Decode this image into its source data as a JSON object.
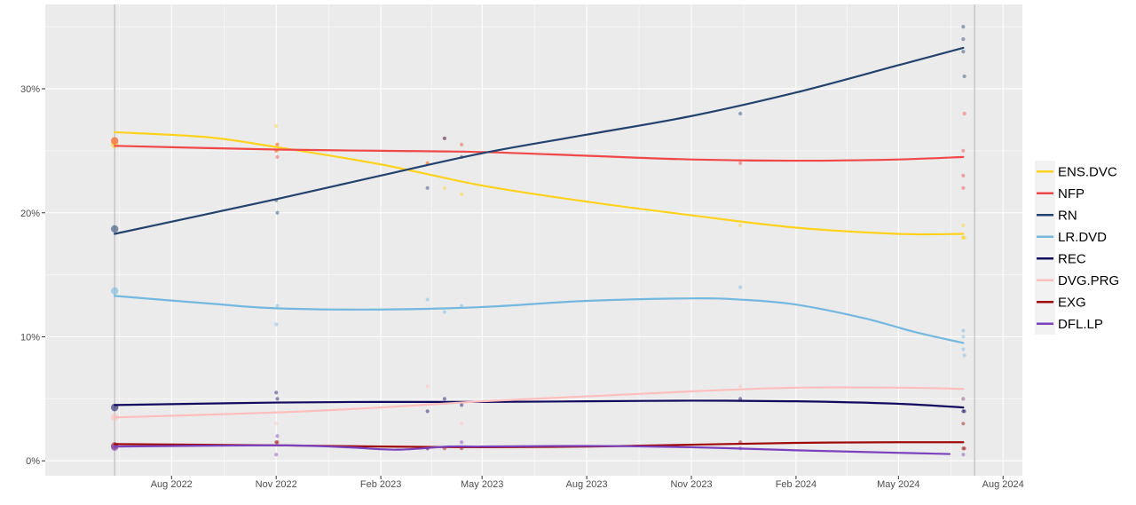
{
  "chart_data": {
    "type": "line",
    "title": "",
    "xlabel": "",
    "ylabel": "",
    "y_format": "percent",
    "xlim": [
      "2022-04-12",
      "2024-08-18"
    ],
    "ylim": [
      -0.012,
      0.368
    ],
    "x_ticks": [
      {
        "date": "2022-08-01",
        "label": "Aug 2022"
      },
      {
        "date": "2022-11-01",
        "label": "Nov 2022"
      },
      {
        "date": "2023-02-01",
        "label": "Feb 2023"
      },
      {
        "date": "2023-05-01",
        "label": "May 2023"
      },
      {
        "date": "2023-08-01",
        "label": "Aug 2023"
      },
      {
        "date": "2023-11-01",
        "label": "Nov 2023"
      },
      {
        "date": "2024-02-01",
        "label": "Feb 2024"
      },
      {
        "date": "2024-05-01",
        "label": "May 2024"
      },
      {
        "date": "2024-08-01",
        "label": "Aug 2024"
      }
    ],
    "y_ticks": [
      {
        "value": 0.0,
        "label": "0%"
      },
      {
        "value": 0.1,
        "label": "10%"
      },
      {
        "value": 0.2,
        "label": "20%"
      },
      {
        "value": 0.3,
        "label": "30%"
      }
    ],
    "vertical_lines": [
      "2022-06-12",
      "2024-07-07"
    ],
    "grid": true,
    "legend_position": "right",
    "series": [
      {
        "name": "ENS.DVC",
        "color": "#FFD21E",
        "points": [
          [
            "2022-06-12",
            0.258
          ],
          [
            "2022-06-12",
            0.255
          ],
          [
            "2022-11-01",
            0.27
          ],
          [
            "2022-11-02",
            0.255
          ],
          [
            "2022-11-02",
            0.25
          ],
          [
            "2023-03-14",
            0.24
          ],
          [
            "2023-03-29",
            0.22
          ],
          [
            "2023-04-13",
            0.215
          ],
          [
            "2023-12-14",
            0.19
          ],
          [
            "2024-06-27",
            0.18
          ],
          [
            "2024-06-27",
            0.19
          ],
          [
            "2024-06-27",
            0.18
          ],
          [
            "2024-06-28",
            0.18
          ]
        ],
        "trend": [
          [
            "2022-06-12",
            0.265
          ],
          [
            "2022-09-01",
            0.261
          ],
          [
            "2022-11-01",
            0.253
          ],
          [
            "2023-02-01",
            0.239
          ],
          [
            "2023-05-01",
            0.222
          ],
          [
            "2023-08-01",
            0.209
          ],
          [
            "2023-11-01",
            0.198
          ],
          [
            "2024-02-01",
            0.188
          ],
          [
            "2024-05-01",
            0.183
          ],
          [
            "2024-06-27",
            0.183
          ]
        ]
      },
      {
        "name": "NFP",
        "color": "#F04848",
        "points": [
          [
            "2022-06-12",
            0.258
          ],
          [
            "2022-11-01",
            0.25
          ],
          [
            "2022-11-02",
            0.245
          ],
          [
            "2022-11-02",
            0.255
          ],
          [
            "2023-03-14",
            0.24
          ],
          [
            "2023-03-29",
            0.26
          ],
          [
            "2023-04-13",
            0.255
          ],
          [
            "2023-12-14",
            0.24
          ],
          [
            "2024-06-27",
            0.23
          ],
          [
            "2024-06-27",
            0.22
          ],
          [
            "2024-06-27",
            0.25
          ],
          [
            "2024-06-28",
            0.28
          ]
        ],
        "trend": [
          [
            "2022-06-12",
            0.254
          ],
          [
            "2022-11-01",
            0.251
          ],
          [
            "2023-02-01",
            0.25
          ],
          [
            "2023-05-01",
            0.249
          ],
          [
            "2023-08-01",
            0.246
          ],
          [
            "2023-11-01",
            0.243
          ],
          [
            "2024-02-01",
            0.242
          ],
          [
            "2024-05-01",
            0.243
          ],
          [
            "2024-06-27",
            0.245
          ]
        ]
      },
      {
        "name": "RN",
        "color": "#23426E",
        "points": [
          [
            "2022-06-12",
            0.187
          ],
          [
            "2022-11-01",
            0.21
          ],
          [
            "2022-11-02",
            0.2
          ],
          [
            "2023-03-14",
            0.22
          ],
          [
            "2023-03-29",
            0.26
          ],
          [
            "2023-04-13",
            0.245
          ],
          [
            "2023-12-14",
            0.28
          ],
          [
            "2024-06-27",
            0.34
          ],
          [
            "2024-06-27",
            0.33
          ],
          [
            "2024-06-27",
            0.35
          ],
          [
            "2024-06-28",
            0.31
          ]
        ],
        "trend": [
          [
            "2022-06-12",
            0.183
          ],
          [
            "2022-11-01",
            0.211
          ],
          [
            "2023-02-01",
            0.23
          ],
          [
            "2023-05-01",
            0.248
          ],
          [
            "2023-08-01",
            0.263
          ],
          [
            "2023-11-01",
            0.278
          ],
          [
            "2024-02-01",
            0.297
          ],
          [
            "2024-05-01",
            0.319
          ],
          [
            "2024-06-27",
            0.333
          ]
        ]
      },
      {
        "name": "LR.DVD",
        "color": "#74B8E0",
        "points": [
          [
            "2022-06-12",
            0.137
          ],
          [
            "2022-11-01",
            0.11
          ],
          [
            "2022-11-02",
            0.125
          ],
          [
            "2023-03-14",
            0.13
          ],
          [
            "2023-03-29",
            0.12
          ],
          [
            "2023-04-13",
            0.125
          ],
          [
            "2023-12-14",
            0.14
          ],
          [
            "2024-06-27",
            0.1
          ],
          [
            "2024-06-27",
            0.09
          ],
          [
            "2024-06-27",
            0.105
          ],
          [
            "2024-06-28",
            0.085
          ]
        ],
        "trend": [
          [
            "2022-06-12",
            0.133
          ],
          [
            "2022-09-01",
            0.127
          ],
          [
            "2022-11-01",
            0.123
          ],
          [
            "2023-02-01",
            0.122
          ],
          [
            "2023-05-01",
            0.124
          ],
          [
            "2023-08-01",
            0.129
          ],
          [
            "2023-11-01",
            0.131
          ],
          [
            "2023-12-14",
            0.13
          ],
          [
            "2024-02-01",
            0.126
          ],
          [
            "2024-04-01",
            0.115
          ],
          [
            "2024-05-15",
            0.104
          ],
          [
            "2024-06-27",
            0.095
          ]
        ]
      },
      {
        "name": "REC",
        "color": "#110A5E",
        "points": [
          [
            "2022-06-12",
            0.043
          ],
          [
            "2022-11-01",
            0.055
          ],
          [
            "2022-11-02",
            0.05
          ],
          [
            "2023-03-14",
            0.04
          ],
          [
            "2023-03-29",
            0.05
          ],
          [
            "2023-04-13",
            0.045
          ],
          [
            "2023-12-14",
            0.05
          ],
          [
            "2024-06-27",
            0.04
          ],
          [
            "2024-06-27",
            0.05
          ],
          [
            "2024-06-28",
            0.04
          ]
        ],
        "trend": [
          [
            "2022-06-12",
            0.045
          ],
          [
            "2022-11-01",
            0.047
          ],
          [
            "2023-02-01",
            0.0475
          ],
          [
            "2023-05-01",
            0.0475
          ],
          [
            "2023-08-01",
            0.048
          ],
          [
            "2023-11-01",
            0.0485
          ],
          [
            "2024-02-01",
            0.048
          ],
          [
            "2024-05-01",
            0.046
          ],
          [
            "2024-06-27",
            0.043
          ]
        ]
      },
      {
        "name": "DVG.PRG",
        "color": "#FFBEBE",
        "points": [
          [
            "2022-06-12",
            0.035
          ],
          [
            "2022-11-01",
            0.03
          ],
          [
            "2023-03-14",
            0.06
          ],
          [
            "2023-04-13",
            0.03
          ],
          [
            "2023-12-14",
            0.06
          ],
          [
            "2024-06-27",
            0.05
          ]
        ],
        "trend": [
          [
            "2022-06-12",
            0.035
          ],
          [
            "2022-11-01",
            0.039
          ],
          [
            "2023-02-01",
            0.043
          ],
          [
            "2023-05-01",
            0.048
          ],
          [
            "2023-08-01",
            0.052
          ],
          [
            "2023-11-01",
            0.056
          ],
          [
            "2024-02-01",
            0.059
          ],
          [
            "2024-05-01",
            0.059
          ],
          [
            "2024-06-27",
            0.058
          ]
        ]
      },
      {
        "name": "EXG",
        "color": "#9E0A0A",
        "points": [
          [
            "2022-06-12",
            0.012
          ],
          [
            "2022-11-01",
            0.015
          ],
          [
            "2022-11-02",
            0.015
          ],
          [
            "2023-03-14",
            0.01
          ],
          [
            "2023-03-29",
            0.01
          ],
          [
            "2023-04-13",
            0.01
          ],
          [
            "2023-12-14",
            0.015
          ],
          [
            "2024-06-27",
            0.01
          ],
          [
            "2024-06-27",
            0.03
          ],
          [
            "2024-06-28",
            0.01
          ]
        ],
        "trend": [
          [
            "2022-06-12",
            0.0135
          ],
          [
            "2022-11-01",
            0.0125
          ],
          [
            "2023-02-01",
            0.0115
          ],
          [
            "2023-05-01",
            0.011
          ],
          [
            "2023-08-01",
            0.0115
          ],
          [
            "2023-11-01",
            0.013
          ],
          [
            "2024-02-01",
            0.0145
          ],
          [
            "2024-05-01",
            0.015
          ],
          [
            "2024-06-27",
            0.015
          ]
        ]
      },
      {
        "name": "DFL.LP",
        "color": "#7B42BE",
        "points": [
          [
            "2022-06-12",
            0.011
          ],
          [
            "2022-11-01",
            0.005
          ],
          [
            "2022-11-02",
            0.02
          ],
          [
            "2023-03-14",
            0.01
          ],
          [
            "2023-04-13",
            0.015
          ],
          [
            "2023-12-14",
            0.01
          ],
          [
            "2024-06-27",
            0.005
          ]
        ],
        "trend": [
          [
            "2022-06-12",
            0.0115
          ],
          [
            "2022-11-01",
            0.0125
          ],
          [
            "2023-01-01",
            0.011
          ],
          [
            "2023-02-15",
            0.009
          ],
          [
            "2023-04-01",
            0.0115
          ],
          [
            "2023-05-01",
            0.0115
          ],
          [
            "2023-08-01",
            0.012
          ],
          [
            "2023-11-01",
            0.011
          ],
          [
            "2024-02-01",
            0.0085
          ],
          [
            "2024-06-15",
            0.0055
          ]
        ]
      }
    ]
  }
}
